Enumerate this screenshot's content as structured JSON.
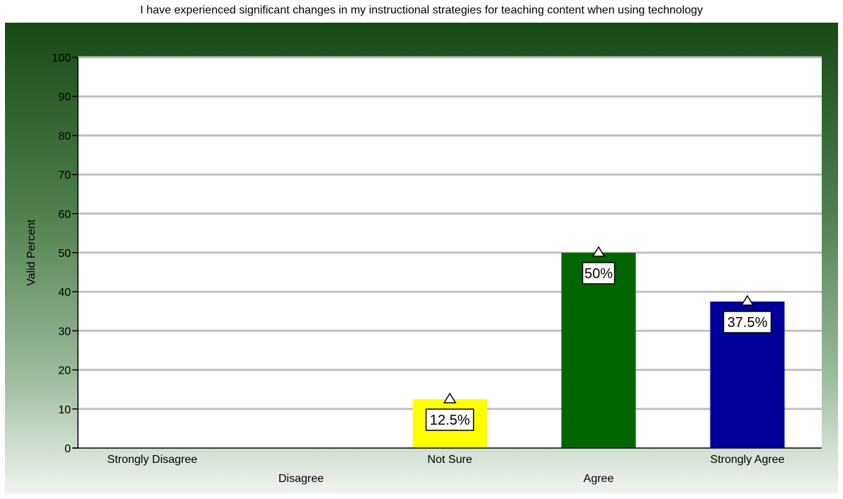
{
  "chart_data": {
    "type": "bar",
    "title": "I have experienced significant changes in my instructional strategies for teaching content when using technology",
    "ylabel": "Valid Percent",
    "xlabel": "",
    "ylim": [
      0,
      100
    ],
    "yticks": [
      0,
      10,
      20,
      30,
      40,
      50,
      60,
      70,
      80,
      90,
      100
    ],
    "grid": true,
    "categories": [
      "Strongly Disagree",
      "Disagree",
      "Not Sure",
      "Agree",
      "Strongly Agree"
    ],
    "values": [
      0,
      0,
      12.5,
      50,
      37.5
    ],
    "data_labels": [
      "",
      "",
      "12.5%",
      "50%",
      "37.5%"
    ],
    "colors": [
      "#ffffff",
      "#ffffff",
      "#ffff00",
      "#006600",
      "#000099"
    ]
  }
}
